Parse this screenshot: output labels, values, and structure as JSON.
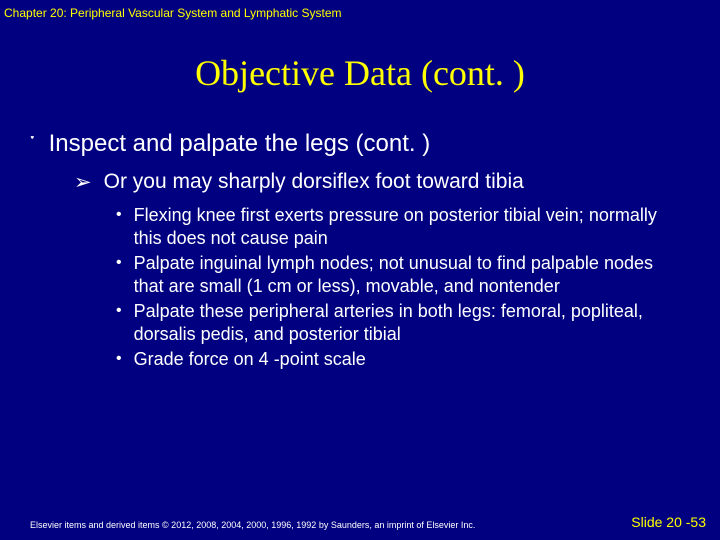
{
  "colors": {
    "background": "#000080",
    "accent": "#ffff00",
    "text": "#ffffff"
  },
  "header": "Chapter 20: Peripheral Vascular System and Lymphatic System",
  "title": "Objective Data (cont. )",
  "bullets": {
    "lvl1": {
      "symbol": "་",
      "text": "Inspect and palpate the legs (cont. )"
    },
    "lvl2": {
      "symbol": "➢",
      "text": "Or you may sharply dorsiflex foot toward tibia"
    },
    "lvl3": [
      "Flexing knee first exerts pressure on posterior tibial vein; normally this does not cause pain",
      "Palpate inguinal lymph nodes; not unusual to find palpable nodes that are small (1 cm or less), movable, and nontender",
      "Palpate these peripheral arteries in both legs: femoral, popliteal, dorsalis pedis, and posterior tibial",
      "Grade force on 4 -point scale"
    ],
    "lvl3_symbol": "•"
  },
  "footer": {
    "copyright": "Elsevier items and derived items © 2012, 2008, 2004, 2000, 1996, 1992 by Saunders, an imprint of Elsevier Inc.",
    "slide": "Slide 20 -53"
  }
}
